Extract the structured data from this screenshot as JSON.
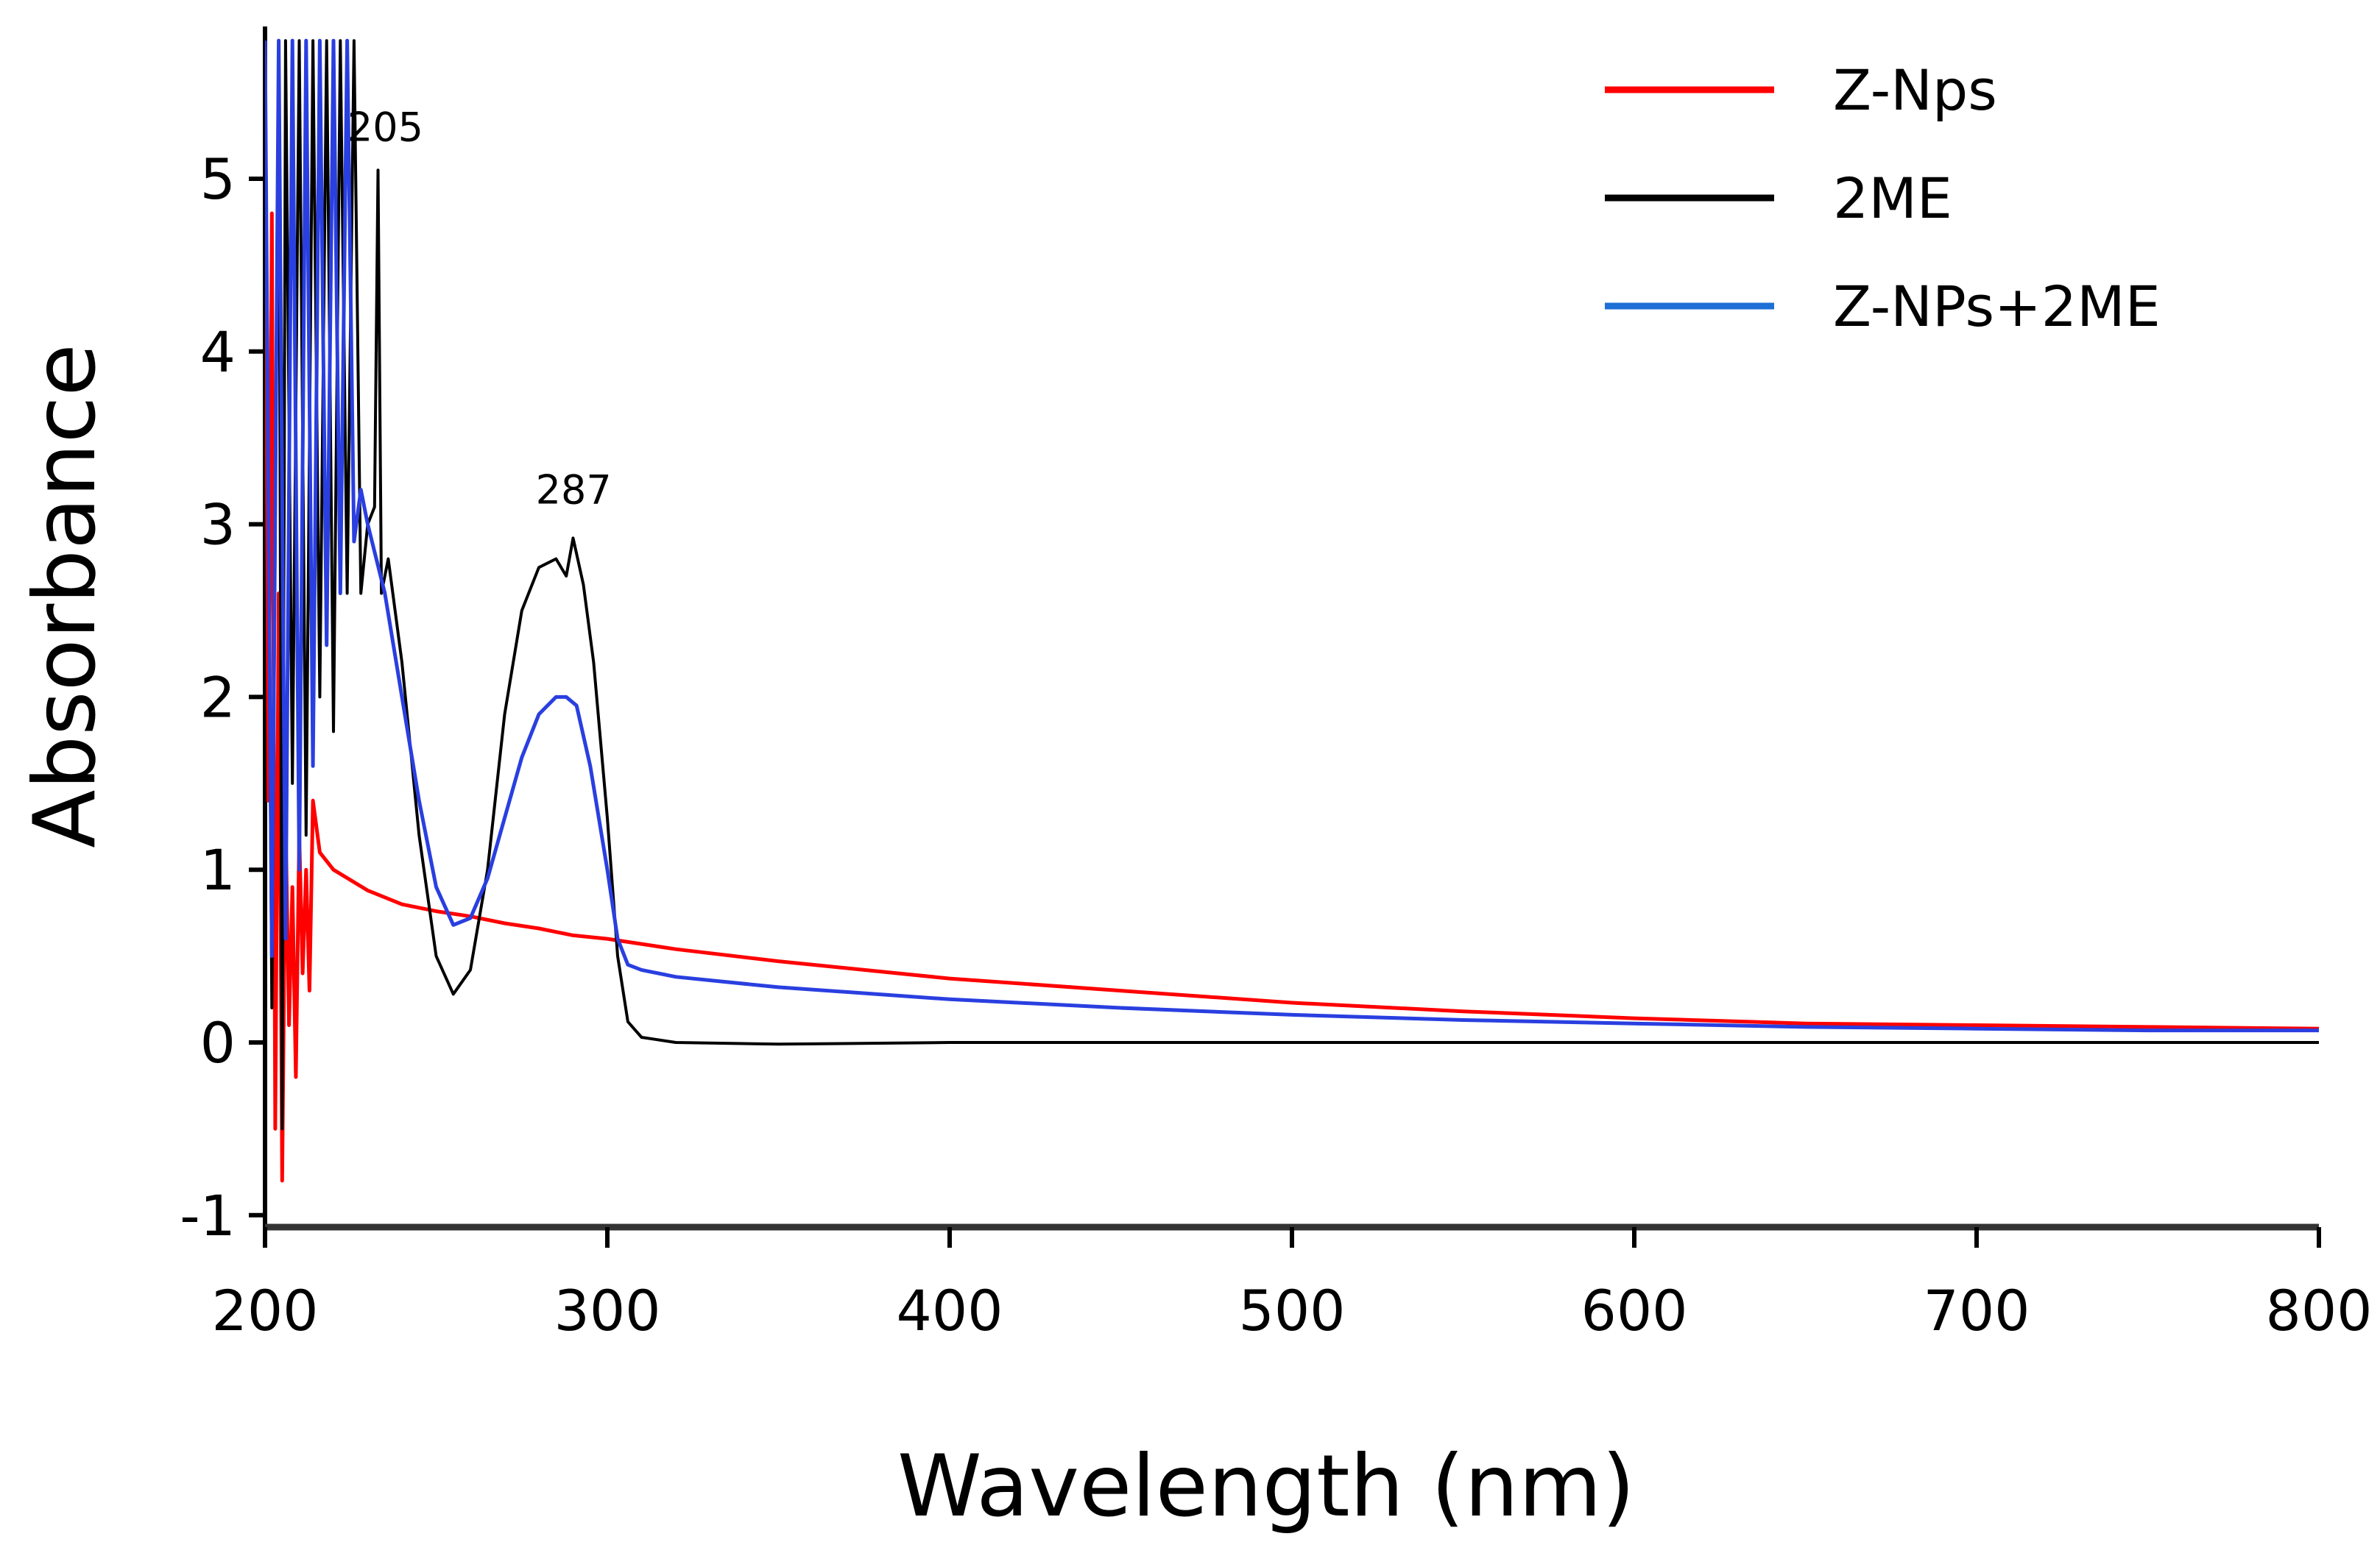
{
  "chart_data": {
    "type": "line",
    "title": "",
    "xlabel": "Wavelength (nm)",
    "ylabel": "Absorbance",
    "xlim": [
      200,
      800
    ],
    "ylim": [
      -1,
      5.8
    ],
    "x_ticks": [
      200,
      300,
      400,
      500,
      600,
      700,
      800
    ],
    "y_ticks": [
      -1,
      0,
      1,
      2,
      3,
      4,
      5
    ],
    "grid": false,
    "legend": "top-right",
    "annotations": [
      {
        "text": "205",
        "x": 233,
        "y": 5.05
      },
      {
        "text": "287",
        "x": 288,
        "y": 2.95
      }
    ],
    "series": [
      {
        "name": "Z-Nps",
        "color": "#ff0000",
        "x": [
          200,
          201,
          202,
          203,
          204,
          205,
          206,
          207,
          208,
          209,
          210,
          211,
          212,
          213,
          214,
          216,
          220,
          230,
          240,
          250,
          260,
          270,
          280,
          290,
          300,
          320,
          350,
          400,
          450,
          500,
          550,
          600,
          650,
          700,
          750,
          800
        ],
        "y": [
          5.8,
          1.4,
          4.8,
          -0.5,
          2.6,
          -0.8,
          1.3,
          0.1,
          0.9,
          -0.2,
          1.2,
          0.4,
          1.0,
          0.3,
          1.4,
          1.1,
          1.0,
          0.88,
          0.8,
          0.76,
          0.73,
          0.69,
          0.66,
          0.62,
          0.6,
          0.54,
          0.47,
          0.37,
          0.3,
          0.23,
          0.18,
          0.14,
          0.11,
          0.1,
          0.09,
          0.08
        ]
      },
      {
        "name": "2ME",
        "color": "#000000",
        "x": [
          200,
          202,
          204,
          205,
          206,
          208,
          210,
          212,
          214,
          216,
          218,
          220,
          222,
          224,
          226,
          228,
          230,
          232,
          233,
          234,
          236,
          240,
          245,
          250,
          255,
          260,
          265,
          270,
          275,
          280,
          285,
          288,
          290,
          293,
          296,
          300,
          303,
          306,
          310,
          320,
          350,
          400,
          500,
          600,
          700,
          800
        ],
        "y": [
          5.8,
          0.2,
          5.8,
          -0.5,
          5.8,
          1.5,
          5.8,
          1.2,
          5.8,
          2.0,
          5.8,
          1.8,
          5.8,
          2.6,
          5.8,
          2.6,
          3.0,
          3.1,
          5.05,
          2.6,
          2.8,
          2.2,
          1.2,
          0.5,
          0.28,
          0.42,
          1.0,
          1.9,
          2.5,
          2.75,
          2.8,
          2.7,
          2.92,
          2.65,
          2.2,
          1.3,
          0.5,
          0.12,
          0.03,
          0.0,
          -0.01,
          0.0,
          0.0,
          0.0,
          0.0,
          0.0
        ]
      },
      {
        "name": "Z-NPs+2ME",
        "color": "#2a3fe0",
        "x": [
          200,
          202,
          204,
          206,
          208,
          210,
          212,
          214,
          216,
          218,
          220,
          222,
          224,
          226,
          228,
          230,
          235,
          240,
          245,
          250,
          255,
          260,
          265,
          270,
          275,
          280,
          285,
          288,
          291,
          295,
          300,
          303,
          306,
          310,
          320,
          350,
          400,
          450,
          500,
          550,
          600,
          650,
          700,
          750,
          800
        ],
        "y": [
          5.8,
          0.5,
          5.8,
          0.6,
          5.8,
          1.0,
          5.8,
          1.6,
          5.8,
          2.3,
          5.8,
          2.6,
          5.8,
          2.9,
          3.2,
          3.0,
          2.6,
          2.0,
          1.4,
          0.9,
          0.68,
          0.72,
          0.95,
          1.3,
          1.65,
          1.9,
          2.0,
          2.0,
          1.95,
          1.6,
          1.0,
          0.6,
          0.45,
          0.42,
          0.38,
          0.32,
          0.25,
          0.2,
          0.16,
          0.13,
          0.11,
          0.09,
          0.08,
          0.07,
          0.07
        ]
      }
    ]
  }
}
